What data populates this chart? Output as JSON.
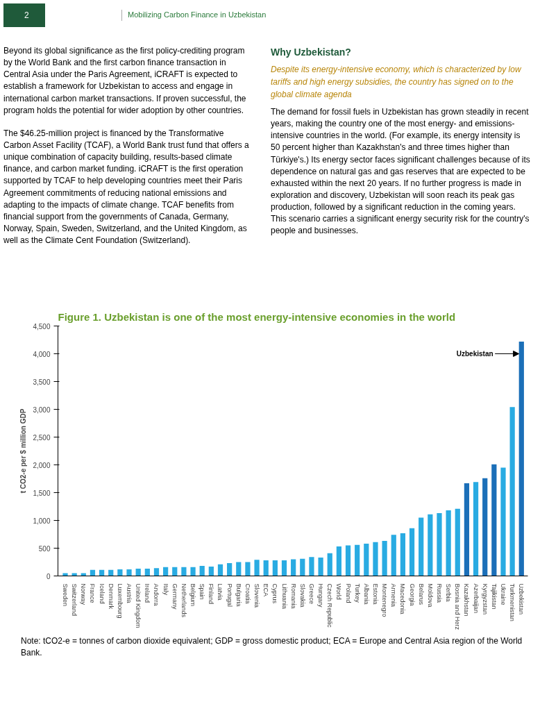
{
  "chart_data": {
    "type": "bar",
    "title": "Figure 1. Uzbekistan is one of the most energy-intensive economies in the world",
    "ylabel": "t CO2-e per $ million GDP",
    "categories": [
      "Sweden",
      "Switzerland",
      "Norway",
      "France",
      "Iceland",
      "Denmark",
      "Luxembourg",
      "Austria",
      "United Kingdom",
      "Ireland",
      "Andorra",
      "Italy",
      "Germany",
      "Netherlands",
      "Belgium",
      "Spain",
      "Finland",
      "Latvia",
      "Portugal",
      "Bulgaria",
      "Croatia",
      "Slovenia",
      "ECA",
      "Cyprus",
      "Lithuania",
      "Romania",
      "Slovakia",
      "Greece",
      "Hungary",
      "Czech Republic",
      "World",
      "Poland",
      "Turkey",
      "Albania",
      "Estonia",
      "Montenegro",
      "Armenia",
      "Macedonia",
      "Georgia",
      "Belarus",
      "Moldova",
      "Russia",
      "Serbia",
      "Bosnia and Herz",
      "Kazakhstan",
      "Azerbaijan",
      "Kyrgyzstan",
      "Tajikistan",
      "Ukraine",
      "Turkmenistan",
      "Uzbekistan"
    ],
    "values": [
      50,
      50,
      50,
      110,
      110,
      110,
      120,
      120,
      130,
      130,
      140,
      160,
      160,
      160,
      160,
      180,
      170,
      210,
      230,
      250,
      250,
      290,
      280,
      280,
      280,
      300,
      310,
      340,
      330,
      410,
      530,
      550,
      560,
      580,
      610,
      630,
      740,
      770,
      860,
      1050,
      1110,
      1130,
      1180,
      1210,
      1670,
      1690,
      1760,
      2010,
      1950,
      3040,
      4220
    ],
    "colors": [
      "#29abe2",
      "#29abe2",
      "#29abe2",
      "#29abe2",
      "#29abe2",
      "#29abe2",
      "#29abe2",
      "#29abe2",
      "#29abe2",
      "#29abe2",
      "#29abe2",
      "#29abe2",
      "#29abe2",
      "#29abe2",
      "#29abe2",
      "#29abe2",
      "#29abe2",
      "#29abe2",
      "#29abe2",
      "#29abe2",
      "#29abe2",
      "#29abe2",
      "#29abe2",
      "#29abe2",
      "#29abe2",
      "#29abe2",
      "#29abe2",
      "#29abe2",
      "#29abe2",
      "#29abe2",
      "#29abe2",
      "#29abe2",
      "#29abe2",
      "#29abe2",
      "#29abe2",
      "#29abe2",
      "#29abe2",
      "#29abe2",
      "#29abe2",
      "#29abe2",
      "#29abe2",
      "#29abe2",
      "#29abe2",
      "#29abe2",
      "#1b6fb8",
      "#29abe2",
      "#1b6fb8",
      "#1b6fb8",
      "#29abe2",
      "#29abe2",
      "#1b6fb8"
    ],
    "ylim": [
      0,
      4500
    ],
    "yticks": [
      0,
      500,
      {
        "value": 1000,
        "label": "1,000"
      },
      {
        "value": 1500,
        "label": "1,500"
      },
      {
        "value": 2000,
        "label": "2,000"
      },
      {
        "value": 2500,
        "label": "2,500"
      },
      {
        "value": 3000,
        "label": "3,000"
      },
      {
        "value": 3500,
        "label": "3,500"
      },
      {
        "value": 4000,
        "label": "4,000"
      },
      {
        "value": 4500,
        "label": "4,500"
      }
    ],
    "grid": false,
    "annotations": [
      "2",
      "Mobilizing Carbon Finance in Uzbekistan",
      "Beyond its global significance as the first policy-crediting program by the World Bank and the first carbon finance transaction in Central Asia under the Paris Agreement, iCRAFT is expected to establish a framework for Uzbekistan to access and engage in international carbon market transactions. If proven successful, the program holds the potential for wider adoption by other countries.",
      "The $46.25-million project is financed by the Transformative Carbon Asset Facility (TCAF), a World Bank trust fund that offers a unique combination of capacity building, results-based climate finance, and carbon market funding. iCRAFT is the first operation supported by TCAF to help developing countries meet their Paris Agreement commitments of reducing national emissions and adapting to the impacts of climate change. TCAF benefits from financial support from the governments of Canada, Germany, Norway, Spain, Sweden, Switzerland, and the United Kingdom, as well as the Climate Cent Foundation (Switzerland).",
      "Why Uzbekistan?",
      "Despite its energy-intensive economy, which is characterized by low tariffs and high energy subsidies, the country has signed on to the global climate agenda",
      "The demand for fossil fuels in Uzbekistan has grown steadily in recent years, making the country one of the most energy- and emissions-intensive countries in the world. (For example, its energy intensity is 50 percent higher than Kazakhstan's and three times higher than Türkiye's.) Its energy sector faces significant challenges because of its dependence on natural gas and gas reserves that are expected to be exhausted within the next 20 years. If no further progress is made in exploration and discovery, Uzbekistan will soon reach its peak gas production, followed by a significant reduction in the coming years. This scenario carries a significant energy security risk for the country's people and businesses.",
      "Note: tCO2-e = tonnes of carbon dioxide equivalent; GDP = gross domestic product; ECA = Europe and Central Asia region of the World Bank.",
      {
        "text": "Uzbekistan",
        "x": "Uzbekistan",
        "y": 4000
      }
    ]
  }
}
